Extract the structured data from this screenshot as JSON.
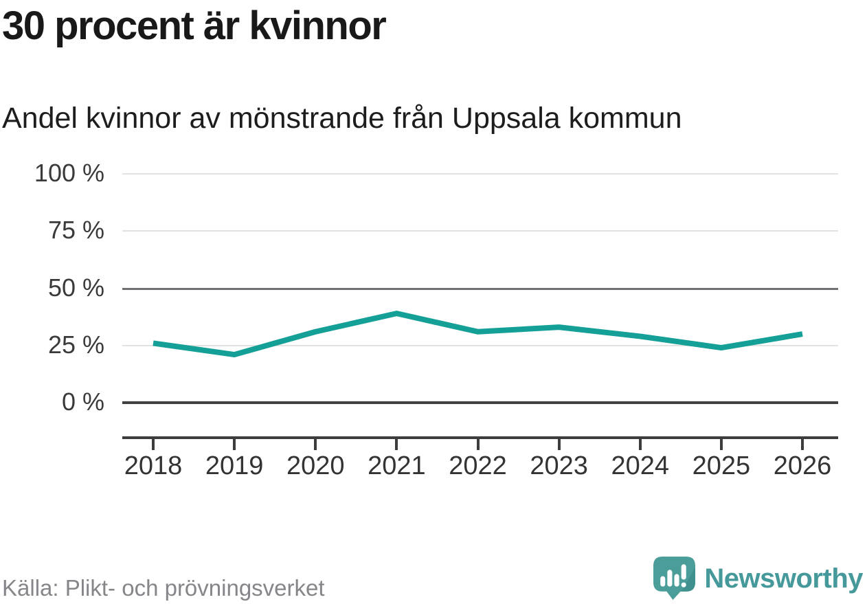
{
  "header": {
    "title": "30 procent är kvinnor",
    "subtitle": "Andel kvinnor av mönstrande från Uppsala kommun"
  },
  "chart_data": {
    "type": "line",
    "x": [
      2018,
      2019,
      2020,
      2021,
      2022,
      2023,
      2024,
      2025,
      2026
    ],
    "series": [
      {
        "name": "Andel kvinnor av mönstrande",
        "values": [
          26,
          21,
          31,
          39,
          31,
          33,
          29,
          24,
          30
        ]
      }
    ],
    "title": "30 procent är kvinnor",
    "subtitle": "Andel kvinnor av mönstrande från Uppsala kommun",
    "xlabel": "",
    "ylabel": "",
    "ylim": [
      0,
      100
    ],
    "y_ticks": [
      0,
      25,
      50,
      75,
      100
    ],
    "y_tick_labels": [
      "0 %",
      "25 %",
      "50 %",
      "75 %",
      "100 %"
    ],
    "x_tick_labels": [
      "2018",
      "2019",
      "2020",
      "2021",
      "2022",
      "2023",
      "2024",
      "2025",
      "2026"
    ],
    "grid": "horizontal",
    "reference_line": 50,
    "legend": "none",
    "line_color": "#14a096"
  },
  "footer": {
    "source": "Källa: Plikt- och prövningsverket",
    "brand": "Newsworthy"
  },
  "colors": {
    "line": "#14a096",
    "grid_light": "#e2e2e2",
    "grid_mid": "#6f6f74",
    "axis_dark": "#3d3d3d",
    "title_text": "#191919",
    "tick_text": "#333333",
    "source_text": "#85858a",
    "brand_teal": "#45999a"
  }
}
